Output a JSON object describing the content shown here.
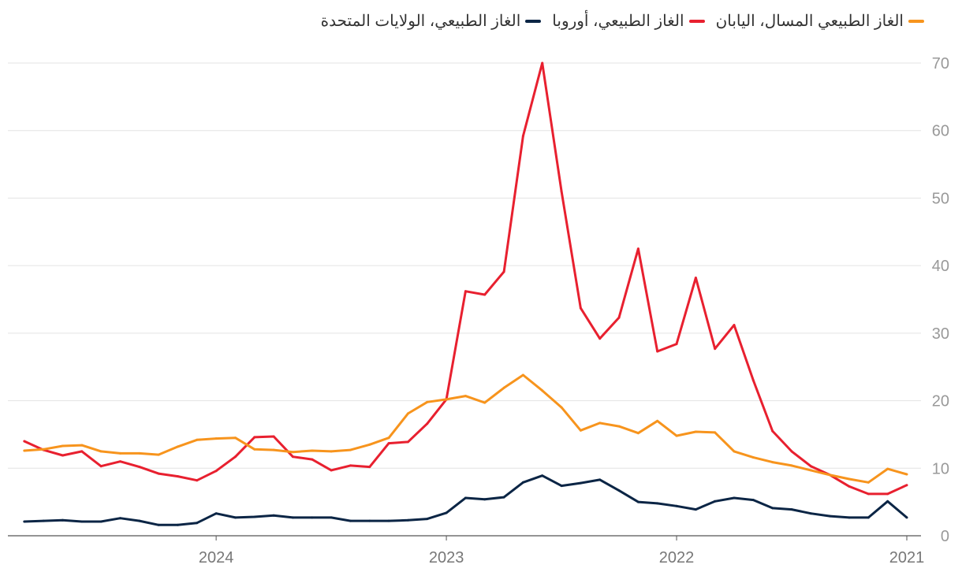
{
  "chart_data": {
    "type": "line",
    "title": "",
    "xlabel": "",
    "ylabel": "",
    "x_axis_direction": "right-to-left",
    "y_axis_position": "right",
    "ylim": [
      0,
      70
    ],
    "yticks": [
      0,
      10,
      20,
      30,
      40,
      50,
      60,
      70
    ],
    "xtick_labels": [
      "2021",
      "2022",
      "2023",
      "2024"
    ],
    "xtick_dates": [
      "2021-01",
      "2022-01",
      "2023-01",
      "2024-01"
    ],
    "grid": "horizontal",
    "legend_placement": "top-right",
    "x": [
      "2021-01",
      "2021-02",
      "2021-03",
      "2021-04",
      "2021-05",
      "2021-06",
      "2021-07",
      "2021-08",
      "2021-09",
      "2021-10",
      "2021-11",
      "2021-12",
      "2022-01",
      "2022-02",
      "2022-03",
      "2022-04",
      "2022-05",
      "2022-06",
      "2022-07",
      "2022-08",
      "2022-09",
      "2022-10",
      "2022-11",
      "2022-12",
      "2023-01",
      "2023-02",
      "2023-03",
      "2023-04",
      "2023-05",
      "2023-06",
      "2023-07",
      "2023-08",
      "2023-09",
      "2023-10",
      "2023-11",
      "2023-12",
      "2024-01",
      "2024-02",
      "2024-03",
      "2024-04",
      "2024-05",
      "2024-06",
      "2024-07",
      "2024-08",
      "2024-09",
      "2024-10",
      "2024-11"
    ],
    "series": [
      {
        "name": "الغاز الطبيعي، الولايات المتحدة",
        "color": "#0b2545",
        "values": [
          2.7,
          5.1,
          2.7,
          2.7,
          2.9,
          3.3,
          3.9,
          4.1,
          5.3,
          5.6,
          5.1,
          3.9,
          4.4,
          4.8,
          5.0,
          6.7,
          8.3,
          7.8,
          7.4,
          8.9,
          7.9,
          5.7,
          5.4,
          5.6,
          3.4,
          2.5,
          2.3,
          2.2,
          2.2,
          2.2,
          2.7,
          2.7,
          2.7,
          3.0,
          2.8,
          2.7,
          3.3,
          1.9,
          1.6,
          1.6,
          2.2,
          2.6,
          2.1,
          2.1,
          2.3,
          2.2,
          2.1
        ]
      },
      {
        "name": "الغاز الطبيعي، أوروبا",
        "color": "#e8202f",
        "values": [
          7.5,
          6.2,
          6.2,
          7.3,
          9.0,
          10.3,
          12.5,
          15.5,
          23.0,
          31.2,
          27.7,
          38.2,
          28.4,
          27.3,
          42.5,
          32.3,
          29.2,
          33.7,
          51.0,
          70.0,
          59.2,
          39.1,
          35.7,
          36.2,
          20.2,
          16.6,
          13.9,
          13.7,
          10.2,
          10.4,
          9.7,
          11.3,
          11.7,
          14.7,
          14.6,
          11.7,
          9.6,
          8.2,
          8.8,
          9.2,
          10.2,
          11.0,
          10.3,
          12.5,
          11.9,
          12.7,
          14.0
        ]
      },
      {
        "name": "الغاز الطبيعي المسال، اليابان",
        "color": "#f7941d",
        "values": [
          9.1,
          9.9,
          7.9,
          8.4,
          9.0,
          9.7,
          10.4,
          10.9,
          11.6,
          12.5,
          15.3,
          15.4,
          14.8,
          17.0,
          15.2,
          16.2,
          16.7,
          15.6,
          19.0,
          21.5,
          23.8,
          21.9,
          19.7,
          20.7,
          20.2,
          19.8,
          18.1,
          14.5,
          13.5,
          12.7,
          12.5,
          12.6,
          12.4,
          12.7,
          12.8,
          14.5,
          14.4,
          14.2,
          13.2,
          12.0,
          12.2,
          12.2,
          12.5,
          13.4,
          13.3,
          12.8,
          12.6
        ]
      }
    ]
  }
}
